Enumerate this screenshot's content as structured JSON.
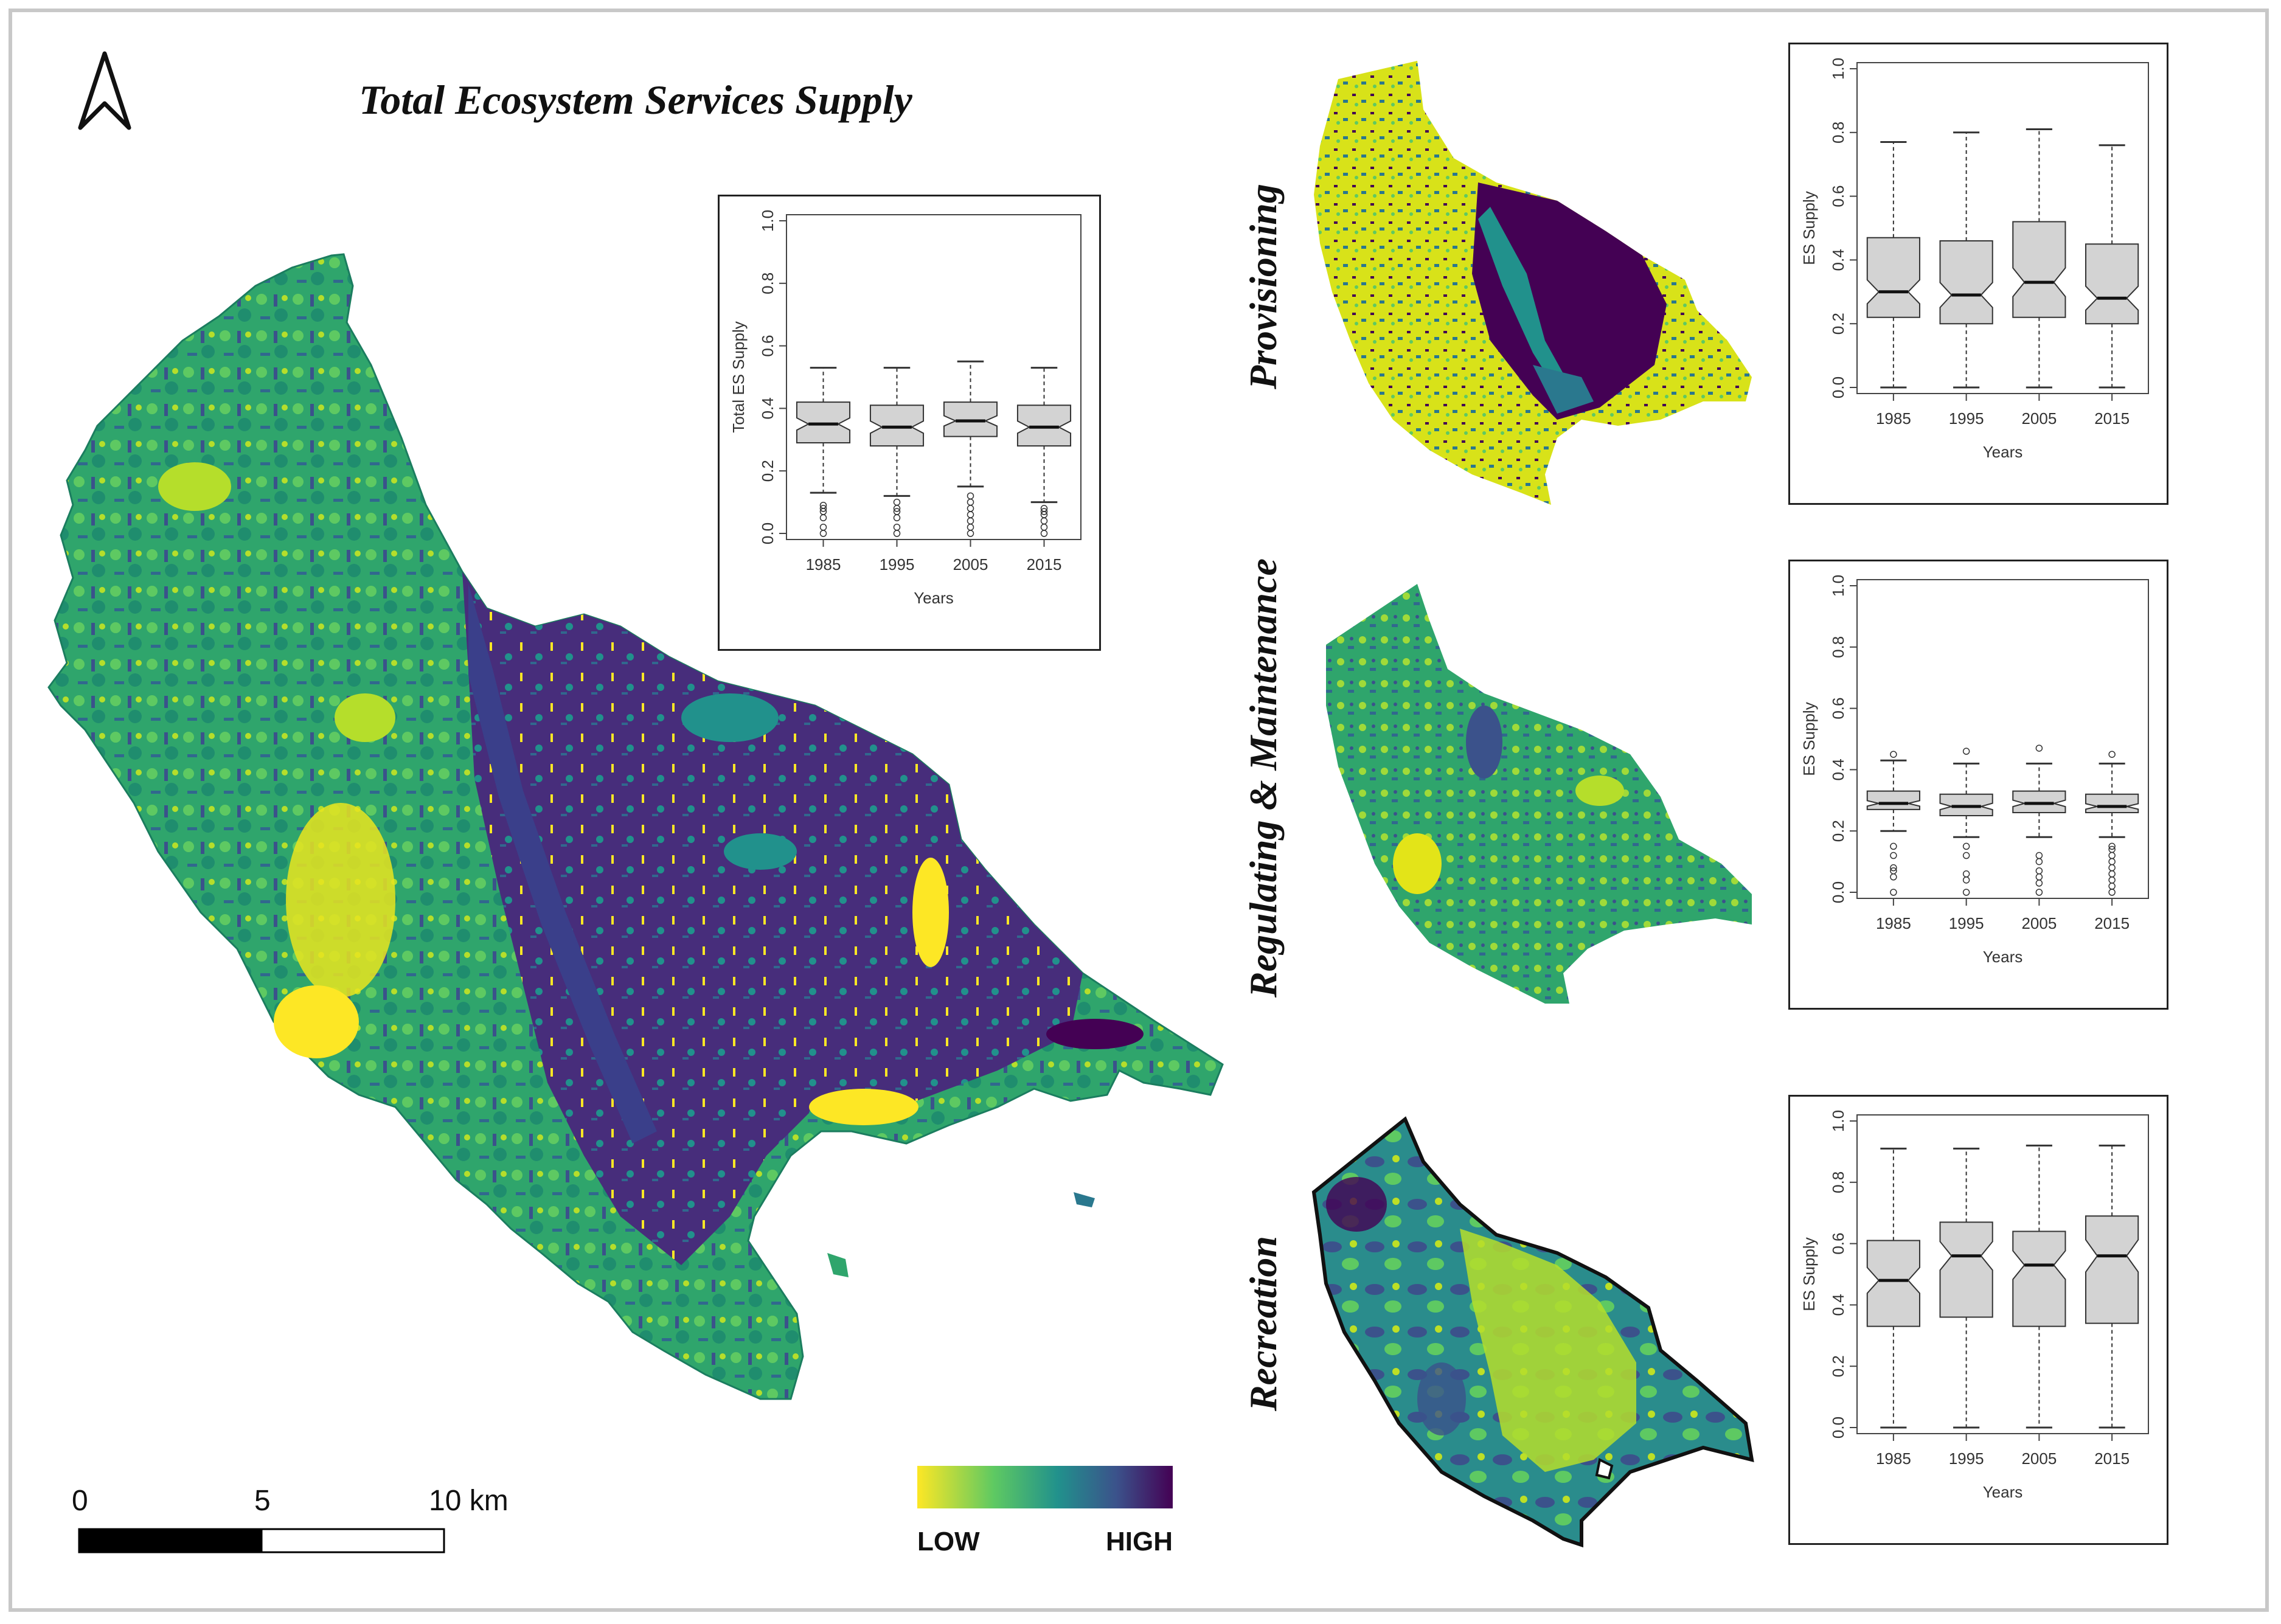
{
  "title": "Total Ecosystem Services Supply",
  "north_arrow": "north-arrow-icon",
  "scale_bar": {
    "labels": [
      "0",
      "5",
      "10 km"
    ],
    "colors": [
      "#000000",
      "#ffffff"
    ]
  },
  "legend": {
    "low_label": "LOW",
    "high_label": "HIGH",
    "gradient": [
      "#fde725",
      "#5ec962",
      "#21918c",
      "#3b528b",
      "#440154"
    ]
  },
  "panels": {
    "provisioning": "Provisioning",
    "regulating": "Regulating & Maintenance",
    "recreation": "Recreation"
  },
  "chart_data": [
    {
      "type": "boxplot",
      "id": "total",
      "xlabel": "Years",
      "ylabel": "Total ES Supply",
      "ylim": [
        0,
        1
      ],
      "yticks": [
        "0.0",
        "0.2",
        "0.4",
        "0.6",
        "0.8",
        "1.0"
      ],
      "categories": [
        "1985",
        "1995",
        "2005",
        "2015"
      ],
      "boxes": [
        {
          "min": 0.13,
          "q1": 0.29,
          "median": 0.35,
          "q3": 0.42,
          "max": 0.53,
          "outliers": [
            0.0,
            0.02,
            0.05,
            0.07,
            0.08,
            0.09
          ]
        },
        {
          "min": 0.12,
          "q1": 0.28,
          "median": 0.34,
          "q3": 0.41,
          "max": 0.53,
          "outliers": [
            0.0,
            0.02,
            0.05,
            0.07,
            0.08,
            0.1
          ]
        },
        {
          "min": 0.15,
          "q1": 0.31,
          "median": 0.36,
          "q3": 0.42,
          "max": 0.55,
          "outliers": [
            0.0,
            0.02,
            0.04,
            0.06,
            0.08,
            0.1,
            0.12
          ]
        },
        {
          "min": 0.1,
          "q1": 0.28,
          "median": 0.34,
          "q3": 0.41,
          "max": 0.53,
          "outliers": [
            0.0,
            0.02,
            0.04,
            0.06,
            0.07,
            0.08
          ]
        }
      ]
    },
    {
      "type": "boxplot",
      "id": "provisioning",
      "xlabel": "Years",
      "ylabel": "ES Supply",
      "ylim": [
        0,
        1
      ],
      "yticks": [
        "0.0",
        "0.2",
        "0.4",
        "0.6",
        "0.8",
        "1.0"
      ],
      "categories": [
        "1985",
        "1995",
        "2005",
        "2015"
      ],
      "boxes": [
        {
          "min": 0.0,
          "q1": 0.22,
          "median": 0.3,
          "q3": 0.47,
          "max": 0.77,
          "outliers": []
        },
        {
          "min": 0.0,
          "q1": 0.2,
          "median": 0.29,
          "q3": 0.46,
          "max": 0.8,
          "outliers": []
        },
        {
          "min": 0.0,
          "q1": 0.22,
          "median": 0.33,
          "q3": 0.52,
          "max": 0.81,
          "outliers": []
        },
        {
          "min": 0.0,
          "q1": 0.2,
          "median": 0.28,
          "q3": 0.45,
          "max": 0.76,
          "outliers": []
        }
      ]
    },
    {
      "type": "boxplot",
      "id": "regulating",
      "xlabel": "Years",
      "ylabel": "ES Supply",
      "ylim": [
        0,
        1
      ],
      "yticks": [
        "0.0",
        "0.2",
        "0.4",
        "0.6",
        "0.8",
        "1.0"
      ],
      "categories": [
        "1985",
        "1995",
        "2005",
        "2015"
      ],
      "boxes": [
        {
          "min": 0.2,
          "q1": 0.27,
          "median": 0.29,
          "q3": 0.33,
          "max": 0.43,
          "outliers": [
            0.0,
            0.05,
            0.07,
            0.08,
            0.12,
            0.15,
            0.45
          ]
        },
        {
          "min": 0.18,
          "q1": 0.25,
          "median": 0.28,
          "q3": 0.32,
          "max": 0.42,
          "outliers": [
            0.0,
            0.04,
            0.06,
            0.12,
            0.15,
            0.46
          ]
        },
        {
          "min": 0.18,
          "q1": 0.26,
          "median": 0.29,
          "q3": 0.33,
          "max": 0.42,
          "outliers": [
            0.0,
            0.03,
            0.05,
            0.07,
            0.1,
            0.12,
            0.47
          ]
        },
        {
          "min": 0.18,
          "q1": 0.26,
          "median": 0.28,
          "q3": 0.32,
          "max": 0.42,
          "outliers": [
            0.0,
            0.02,
            0.04,
            0.06,
            0.08,
            0.1,
            0.12,
            0.14,
            0.15,
            0.45
          ]
        }
      ]
    },
    {
      "type": "boxplot",
      "id": "recreation",
      "xlabel": "Years",
      "ylabel": "ES Supply",
      "ylim": [
        0,
        1
      ],
      "yticks": [
        "0.0",
        "0.2",
        "0.4",
        "0.6",
        "0.8",
        "1.0"
      ],
      "categories": [
        "1985",
        "1995",
        "2005",
        "2015"
      ],
      "boxes": [
        {
          "min": 0.0,
          "q1": 0.33,
          "median": 0.48,
          "q3": 0.61,
          "max": 0.91,
          "outliers": []
        },
        {
          "min": 0.0,
          "q1": 0.36,
          "median": 0.56,
          "q3": 0.67,
          "max": 0.91,
          "outliers": []
        },
        {
          "min": 0.0,
          "q1": 0.33,
          "median": 0.53,
          "q3": 0.64,
          "max": 0.92,
          "outliers": []
        },
        {
          "min": 0.0,
          "q1": 0.34,
          "median": 0.56,
          "q3": 0.69,
          "max": 0.92,
          "outliers": []
        }
      ]
    }
  ]
}
